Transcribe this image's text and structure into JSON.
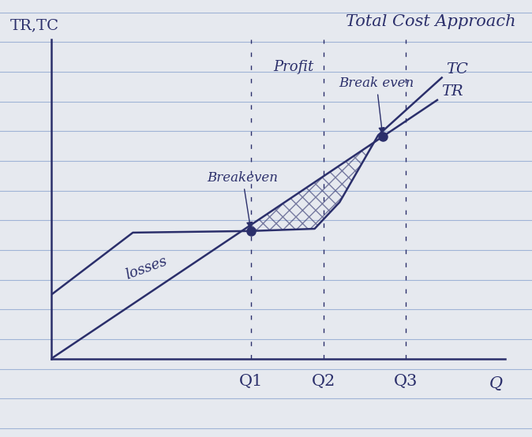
{
  "chart_data": {
    "type": "line",
    "title": "Total Cost Approach",
    "x_label": "Q",
    "y_label": "TR,TC",
    "series": [
      {
        "name": "TC",
        "color": "#2b2f6b",
        "x": [
          0,
          1.8,
          4.4,
          5.8,
          6.35,
          7.2,
          8.6
        ],
        "values": [
          2.0,
          3.95,
          4.0,
          4.07,
          4.9,
          7.0,
          8.8
        ]
      },
      {
        "name": "TR",
        "color": "#2b2f6b",
        "x": [
          0,
          8.5
        ],
        "values": [
          0,
          8.1
        ]
      }
    ],
    "points": [
      {
        "label": "Breakeven",
        "x": 4.4,
        "y": 4.0
      },
      {
        "label": "Break even",
        "x": 7.3,
        "y": 6.96
      }
    ],
    "annotations": [
      {
        "text": "Profit",
        "x": 4.9,
        "y": 9.0
      },
      {
        "text": "losses",
        "x": 1.6,
        "y": 2.5
      }
    ],
    "xlim": [
      0,
      10
    ],
    "ylim": [
      0,
      10
    ],
    "xticks": [
      {
        "value": 4.4,
        "label": "Q1"
      },
      {
        "value": 6.0,
        "label": "Q2"
      },
      {
        "value": 7.8,
        "label": "Q3"
      }
    ],
    "tick_labels": "x",
    "grid": false
  }
}
